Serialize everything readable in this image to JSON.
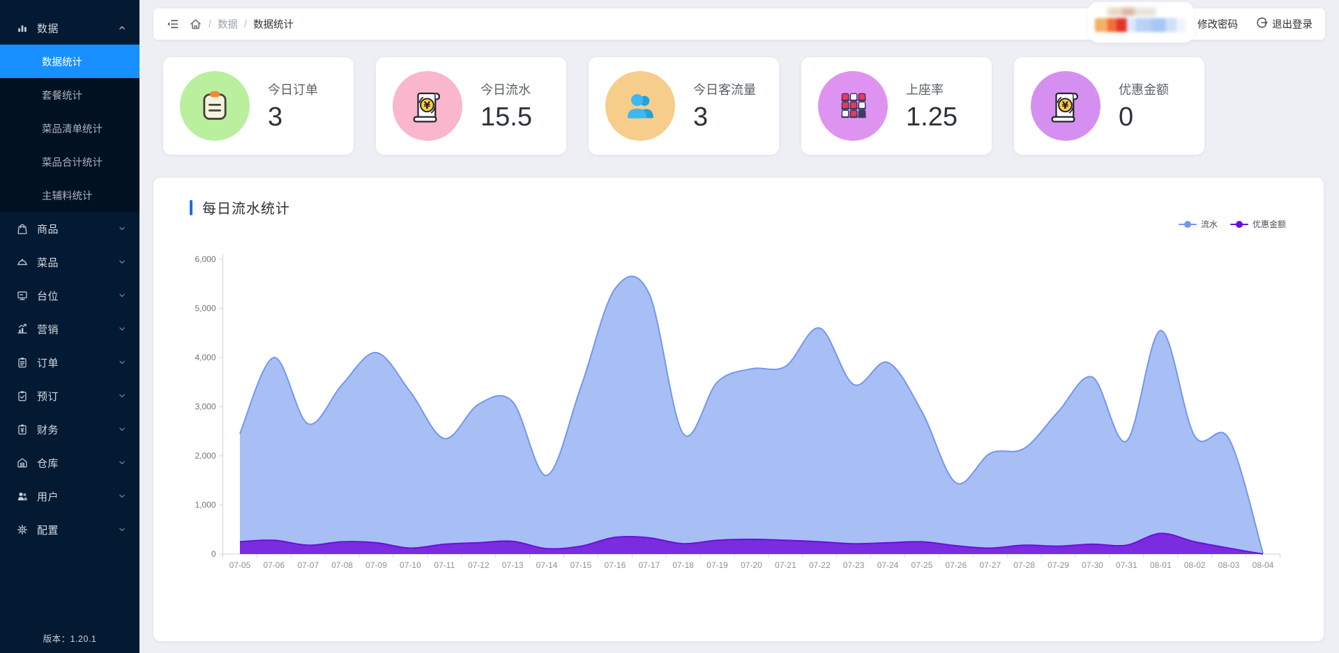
{
  "sidebar": {
    "version": "版本：1.20.1",
    "menu": [
      {
        "label": "数据",
        "icon": "bar-chart",
        "expanded": true,
        "children": [
          {
            "label": "数据统计",
            "active": true
          },
          {
            "label": "套餐统计",
            "active": false
          },
          {
            "label": "菜品清单统计",
            "active": false
          },
          {
            "label": "菜品合计统计",
            "active": false
          },
          {
            "label": "主辅料统计",
            "active": false
          }
        ]
      },
      {
        "label": "商品",
        "icon": "goods"
      },
      {
        "label": "菜品",
        "icon": "dish"
      },
      {
        "label": "台位",
        "icon": "table-station"
      },
      {
        "label": "营销",
        "icon": "marketing"
      },
      {
        "label": "订单",
        "icon": "order"
      },
      {
        "label": "预订",
        "icon": "reservation"
      },
      {
        "label": "财务",
        "icon": "finance"
      },
      {
        "label": "仓库",
        "icon": "warehouse"
      },
      {
        "label": "用户",
        "icon": "users"
      },
      {
        "label": "配置",
        "icon": "settings"
      }
    ]
  },
  "topbar": {
    "separator": "/",
    "breadcrumb_parent": "数据",
    "breadcrumb_current": "数据统计",
    "change_password": "修改密码",
    "logout": "退出登录"
  },
  "stats": [
    {
      "label": "今日订单",
      "value": "3",
      "icon": "clipboard-order",
      "circle_color": "#b9ef9d"
    },
    {
      "label": "今日流水",
      "value": "15.5",
      "icon": "receipt-yen",
      "circle_color": "#f9b6cd"
    },
    {
      "label": "今日客流量",
      "value": "3",
      "icon": "visitors",
      "circle_color": "#f6cd8b"
    },
    {
      "label": "上座率",
      "value": "1.25",
      "icon": "seats",
      "circle_color": "#de93f1"
    },
    {
      "label": "优惠金额",
      "value": "0",
      "icon": "receipt-yen",
      "circle_color": "#d58ff0"
    }
  ],
  "chart_data": {
    "type": "area",
    "title": "每日流水统计",
    "x": [
      "07-05",
      "07-06",
      "07-07",
      "07-08",
      "07-09",
      "07-10",
      "07-11",
      "07-12",
      "07-13",
      "07-14",
      "07-15",
      "07-16",
      "07-17",
      "07-18",
      "07-19",
      "07-20",
      "07-21",
      "07-22",
      "07-23",
      "07-24",
      "07-25",
      "07-26",
      "07-27",
      "07-28",
      "07-29",
      "07-30",
      "07-31",
      "08-01",
      "08-02",
      "08-03",
      "08-04"
    ],
    "series": [
      {
        "name": "流水",
        "color": "#7596ee",
        "fill": "#a7bff5",
        "values": [
          2450,
          4000,
          2650,
          3450,
          4100,
          3300,
          2350,
          3050,
          3100,
          1600,
          3400,
          5400,
          5300,
          2450,
          3500,
          3770,
          3820,
          4600,
          3450,
          3900,
          2900,
          1450,
          2050,
          2150,
          2900,
          3600,
          2300,
          4550,
          2400,
          2350,
          15
        ]
      },
      {
        "name": "优惠金额",
        "color": "#6a11d9",
        "fill": "#7b2be0",
        "values": [
          250,
          280,
          180,
          250,
          230,
          120,
          200,
          230,
          260,
          110,
          160,
          340,
          330,
          210,
          280,
          300,
          280,
          250,
          210,
          230,
          250,
          170,
          120,
          180,
          160,
          200,
          180,
          420,
          250,
          120,
          0
        ]
      }
    ],
    "ylim": [
      0,
      6000
    ],
    "yticks": [
      "0",
      "1,000",
      "2,000",
      "3,000",
      "4,000",
      "5,000",
      "6,000"
    ],
    "legend_position": "top-right",
    "grid": false
  }
}
